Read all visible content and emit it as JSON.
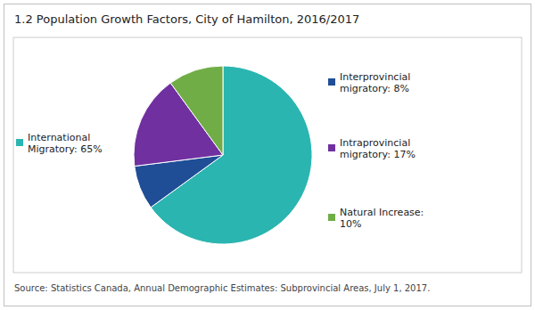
{
  "chart_data": {
    "type": "pie",
    "title": "1.2 Population Growth Factors, City of Hamilton, 2016/2017",
    "source": "Source: Statistics Canada, Annual Demographic Estimates: Subprovincial Areas, July 1, 2017.",
    "categories": [
      "International\nMigratory: 65%",
      "Interprovincial\nmigratory: 8%",
      "Intraprovincial\nmigratory: 17%",
      "Natural Increase:\n10%"
    ],
    "values": [
      65,
      8,
      17,
      10
    ],
    "colors": [
      "#2ab5b0",
      "#1f4e96",
      "#7030a0",
      "#70ad47"
    ],
    "data_labels": true
  }
}
